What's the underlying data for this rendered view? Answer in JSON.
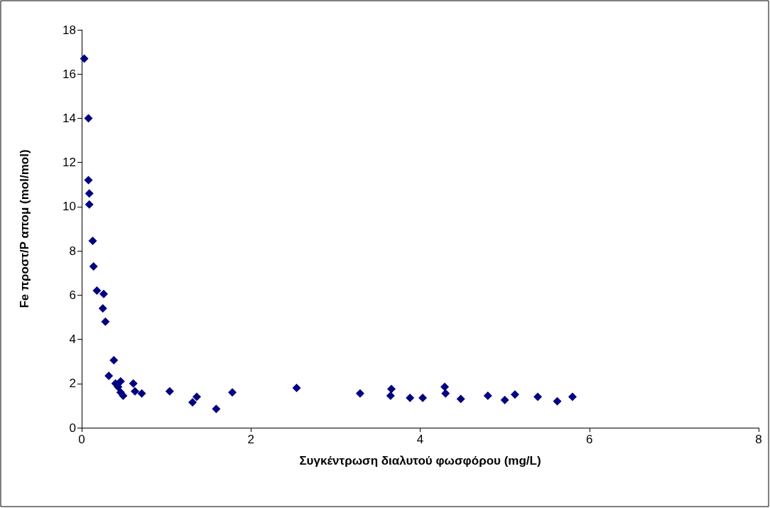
{
  "chart_data": {
    "type": "scatter",
    "xlabel": "Συγκέντρωση διαλυτού φωσφόρου (mg/L)",
    "ylabel": "Fe προστ/P απομ (mol/mol)",
    "marker": "diamond",
    "xlim": [
      0,
      8
    ],
    "xticks": [
      0,
      2,
      4,
      6,
      8
    ],
    "ylim": [
      0,
      18
    ],
    "yticks": [
      0,
      2,
      4,
      6,
      8,
      10,
      12,
      14,
      16,
      18
    ],
    "series": [
      {
        "color": "#000080",
        "x": [
          0.03,
          0.08,
          0.08,
          0.09,
          0.09,
          0.13,
          0.14,
          0.18,
          0.26,
          0.25,
          0.28,
          0.38,
          0.32,
          0.4,
          0.43,
          0.46,
          0.46,
          0.49,
          0.61,
          0.63,
          0.71,
          1.04,
          1.31,
          1.36,
          1.59,
          1.78,
          2.54,
          3.29,
          3.66,
          3.65,
          3.88,
          4.03,
          4.29,
          4.3,
          4.48,
          4.8,
          5.0,
          5.12,
          5.39,
          5.62,
          5.8
        ],
        "values": [
          16.7,
          14.0,
          11.2,
          10.6,
          10.1,
          8.45,
          7.3,
          6.2,
          6.05,
          5.4,
          4.8,
          3.05,
          2.35,
          2.0,
          1.85,
          2.1,
          1.6,
          1.45,
          2.0,
          1.65,
          1.55,
          1.65,
          1.15,
          1.4,
          0.85,
          1.6,
          1.8,
          1.55,
          1.75,
          1.45,
          1.35,
          1.35,
          1.85,
          1.55,
          1.3,
          1.45,
          1.25,
          1.5,
          1.4,
          1.2,
          1.4
        ]
      }
    ]
  }
}
